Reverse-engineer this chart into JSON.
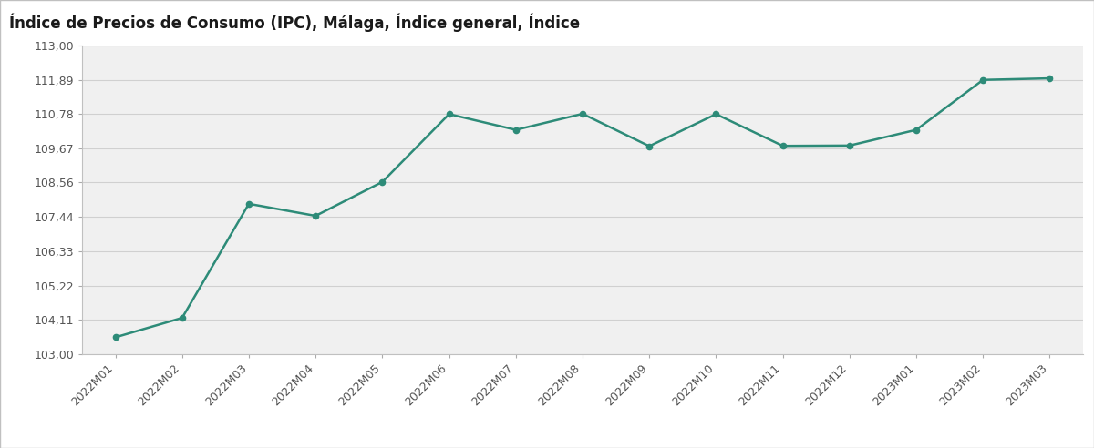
{
  "title": "Índice de Precios de Consumo (IPC), Málaga, Índice general, Índice",
  "x_labels": [
    "2022M01",
    "2022M02",
    "2022M03",
    "2022M04",
    "2022M05",
    "2022M06",
    "2022M07",
    "2022M08",
    "2022M09",
    "2022M10",
    "2022M11",
    "2022M12",
    "2023M01",
    "2023M02",
    "2023M03"
  ],
  "y_values": [
    103.54,
    104.17,
    107.87,
    107.48,
    108.58,
    110.78,
    110.27,
    110.79,
    109.74,
    110.78,
    109.75,
    109.76,
    110.27,
    111.89,
    111.94
  ],
  "ylim_min": 103.0,
  "ylim_max": 113.0,
  "yticks": [
    103.0,
    104.11,
    105.22,
    106.33,
    107.44,
    108.56,
    109.67,
    110.78,
    111.89,
    113.0
  ],
  "line_color": "#2d8b78",
  "marker_color": "#2d8b78",
  "title_bg_color": "#aecfcf",
  "title_text_color": "#1a1a1a",
  "plot_bg_color": "#f0f0f0",
  "outer_bg_color": "#ffffff",
  "grid_color": "#d0d0d0",
  "border_color": "#c0c0c0",
  "title_fontsize": 12,
  "tick_fontsize": 9,
  "line_width": 1.8,
  "marker_size": 4.5
}
